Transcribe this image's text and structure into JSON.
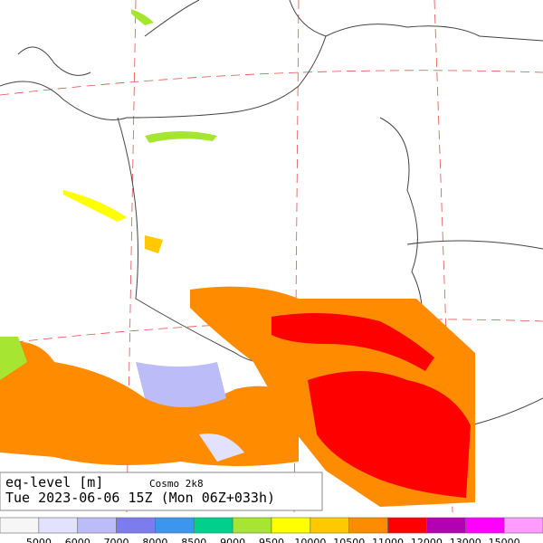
{
  "header": {
    "field": "eq-level [m]",
    "model": "Cosmo 2k8",
    "time": "Tue 2023-06-06 15Z (Mon 06Z+033h)"
  },
  "legend": {
    "colors": [
      "#f6f6f6",
      "#e2e2ff",
      "#bcbcf8",
      "#7c7cf0",
      "#3c96f0",
      "#00d08c",
      "#a6e632",
      "#ffff00",
      "#ffc800",
      "#ff8c00",
      "#ff0000",
      "#b400b4",
      "#ff00ff",
      "#ff9cff"
    ],
    "labels": [
      5000,
      6000,
      7000,
      8000,
      8500,
      9000,
      9500,
      10000,
      10500,
      11000,
      12000,
      13000,
      15000
    ]
  }
}
